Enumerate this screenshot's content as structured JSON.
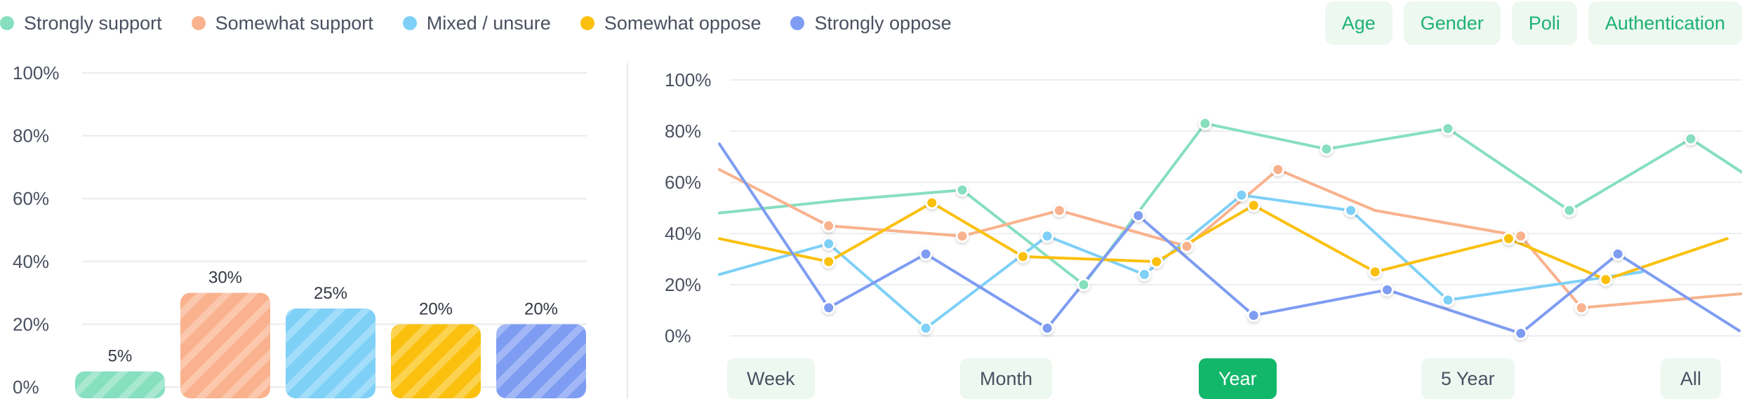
{
  "legend": [
    {
      "label": "Strongly support",
      "color": "#86dfbf"
    },
    {
      "label": "Somewhat support",
      "color": "#f9b28d"
    },
    {
      "label": "Mixed / unsure",
      "color": "#7ed0f7"
    },
    {
      "label": "Somewhat oppose",
      "color": "#fbc00e"
    },
    {
      "label": "Strongly oppose",
      "color": "#7e9cf2"
    }
  ],
  "filters": [
    "Age",
    "Gender",
    "Poli",
    "Authentication"
  ],
  "time_ranges": {
    "items": [
      "Week",
      "Month",
      "Year",
      "5 Year",
      "All"
    ],
    "active": "Year"
  },
  "chart_data": [
    {
      "type": "bar",
      "categories": [
        "Strongly support",
        "Somewhat support",
        "Mixed / unsure",
        "Somewhat oppose",
        "Strongly oppose"
      ],
      "values": [
        5,
        30,
        25,
        20,
        20
      ],
      "data_labels": [
        "5%",
        "30%",
        "25%",
        "20%",
        "20%"
      ],
      "ylim": [
        0,
        100
      ],
      "yticks": [
        "0%",
        "20%",
        "40%",
        "60%",
        "80%",
        "100%"
      ],
      "bar_style": "diagonal-stripes",
      "grid": true
    },
    {
      "type": "line",
      "ylim": [
        0,
        100
      ],
      "yticks": [
        "0%",
        "20%",
        "40%",
        "60%",
        "80%",
        "100%"
      ],
      "grid": true,
      "series": [
        {
          "name": "Strongly support",
          "color": "#86dfbf",
          "points": [
            [
              0,
              48
            ],
            [
              1,
              53
            ],
            [
              2,
              57
            ],
            [
              3,
              20
            ],
            [
              4,
              83
            ],
            [
              5,
              73
            ],
            [
              6,
              81
            ],
            [
              7,
              49
            ],
            [
              8,
              77
            ],
            [
              9,
              46
            ]
          ],
          "markers": [
            2,
            3,
            4,
            5,
            6,
            7,
            8
          ]
        },
        {
          "name": "Somewhat support",
          "color": "#f9b28d",
          "points": [
            [
              0,
              65
            ],
            [
              0.9,
              43
            ],
            [
              2,
              39
            ],
            [
              2.8,
              49
            ],
            [
              3.85,
              35
            ],
            [
              4.6,
              65
            ],
            [
              5.4,
              49
            ],
            [
              6.6,
              39
            ],
            [
              7.1,
              11
            ],
            [
              8.55,
              17
            ]
          ],
          "markers": [
            1,
            2,
            3,
            4,
            5,
            7,
            8
          ]
        },
        {
          "name": "Mixed / unsure",
          "color": "#7ed0f7",
          "points": [
            [
              0,
              24
            ],
            [
              0.9,
              36
            ],
            [
              1.7,
              3
            ],
            [
              2.7,
              39
            ],
            [
              3.5,
              24
            ],
            [
              4.3,
              55
            ],
            [
              5.2,
              49
            ],
            [
              6.0,
              14
            ],
            [
              7.6,
              25
            ]
          ],
          "markers": [
            1,
            2,
            3,
            4,
            5,
            6,
            7
          ]
        },
        {
          "name": "Somewhat oppose",
          "color": "#fbc00e",
          "points": [
            [
              0,
              38
            ],
            [
              0.9,
              29
            ],
            [
              1.75,
              52
            ],
            [
              2.5,
              31
            ],
            [
              3.6,
              29
            ],
            [
              4.4,
              51
            ],
            [
              5.4,
              25
            ],
            [
              6.5,
              38
            ],
            [
              7.3,
              22
            ],
            [
              8.3,
              38
            ]
          ],
          "markers": [
            1,
            2,
            3,
            4,
            5,
            6,
            7,
            8
          ]
        },
        {
          "name": "Strongly oppose",
          "color": "#7e9cf2",
          "points": [
            [
              0,
              75
            ],
            [
              0.9,
              11
            ],
            [
              1.7,
              32
            ],
            [
              2.7,
              3
            ],
            [
              3.45,
              47
            ],
            [
              4.4,
              8
            ],
            [
              5.5,
              18
            ],
            [
              6.6,
              1
            ],
            [
              7.4,
              32
            ],
            [
              8.4,
              2
            ]
          ],
          "markers": [
            1,
            2,
            3,
            4,
            5,
            6,
            7,
            8
          ]
        }
      ]
    }
  ]
}
